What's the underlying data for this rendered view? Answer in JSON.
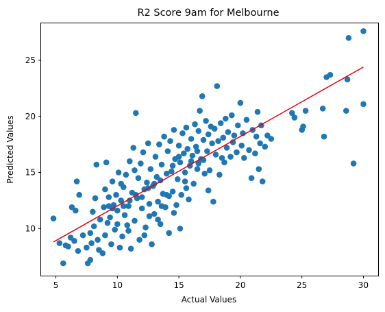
{
  "chart_data": {
    "type": "scatter",
    "title": "R2 Score 9am for Melbourne",
    "xlabel": "Actual Values",
    "ylabel": "Predicted Values",
    "xlim": [
      3.8,
      31.2
    ],
    "ylim": [
      5.8,
      28.3
    ],
    "xticks": [
      5,
      10,
      15,
      20,
      25,
      30
    ],
    "yticks": [
      10,
      15,
      20,
      25
    ],
    "grid": false,
    "marker_color": "#1f77b4",
    "fit_line_color": "#e8000b",
    "fit_line": {
      "x": [
        4.8,
        30.0
      ],
      "y": [
        8.8,
        24.4
      ]
    },
    "points": [
      [
        4.8,
        10.9
      ],
      [
        5.3,
        8.7
      ],
      [
        5.6,
        6.9
      ],
      [
        5.8,
        8.5
      ],
      [
        6.0,
        8.4
      ],
      [
        6.2,
        9.2
      ],
      [
        6.3,
        11.9
      ],
      [
        6.5,
        8.9
      ],
      [
        6.6,
        11.6
      ],
      [
        6.7,
        14.2
      ],
      [
        6.8,
        8.0
      ],
      [
        6.9,
        13.0
      ],
      [
        7.2,
        9.4
      ],
      [
        7.5,
        8.3
      ],
      [
        7.6,
        6.9
      ],
      [
        7.8,
        7.2
      ],
      [
        7.8,
        9.6
      ],
      [
        7.9,
        8.7
      ],
      [
        8.0,
        11.5
      ],
      [
        8.1,
        10.2
      ],
      [
        8.2,
        12.7
      ],
      [
        8.3,
        15.7
      ],
      [
        8.4,
        9.0
      ],
      [
        8.5,
        8.1
      ],
      [
        8.6,
        10.8
      ],
      [
        8.8,
        7.8
      ],
      [
        8.9,
        11.9
      ],
      [
        9.0,
        9.4
      ],
      [
        9.0,
        13.5
      ],
      [
        9.1,
        15.9
      ],
      [
        9.2,
        10.5
      ],
      [
        9.3,
        12.8
      ],
      [
        9.4,
        11.0
      ],
      [
        9.5,
        8.6
      ],
      [
        9.6,
        14.2
      ],
      [
        9.7,
        12.1
      ],
      [
        9.8,
        9.9
      ],
      [
        9.9,
        13.0
      ],
      [
        10.0,
        11.6
      ],
      [
        10.1,
        15.0
      ],
      [
        10.2,
        8.3
      ],
      [
        10.3,
        12.5
      ],
      [
        10.4,
        9.3
      ],
      [
        10.5,
        13.7
      ],
      [
        10.6,
        11.2
      ],
      [
        10.7,
        14.8
      ],
      [
        10.8,
        10.3
      ],
      [
        10.9,
        12.0
      ],
      [
        11.0,
        16.0
      ],
      [
        11.1,
        8.2
      ],
      [
        11.2,
        13.2
      ],
      [
        11.3,
        17.2
      ],
      [
        11.4,
        10.7
      ],
      [
        11.5,
        20.3
      ],
      [
        11.6,
        12.7
      ],
      [
        11.7,
        14.5
      ],
      [
        11.8,
        9.0
      ],
      [
        11.9,
        15.8
      ],
      [
        12.0,
        11.8
      ],
      [
        12.1,
        16.8
      ],
      [
        12.2,
        13.5
      ],
      [
        12.3,
        10.1
      ],
      [
        12.4,
        14.1
      ],
      [
        12.5,
        17.6
      ],
      [
        12.6,
        12.2
      ],
      [
        12.7,
        15.3
      ],
      [
        12.8,
        8.6
      ],
      [
        12.9,
        13.8
      ],
      [
        13.0,
        11.3
      ],
      [
        13.1,
        16.4
      ],
      [
        13.2,
        14.6
      ],
      [
        13.3,
        12.4
      ],
      [
        13.4,
        17.5
      ],
      [
        13.5,
        10.4
      ],
      [
        13.6,
        15.7
      ],
      [
        13.7,
        13.1
      ],
      [
        13.8,
        18.2
      ],
      [
        13.9,
        11.9
      ],
      [
        14.0,
        14.9
      ],
      [
        14.1,
        16.9
      ],
      [
        14.2,
        12.9
      ],
      [
        14.3,
        17.8
      ],
      [
        14.4,
        15.1
      ],
      [
        14.5,
        13.3
      ],
      [
        14.6,
        18.8
      ],
      [
        14.7,
        16.2
      ],
      [
        14.8,
        12.1
      ],
      [
        14.9,
        14.4
      ],
      [
        15.0,
        17.4
      ],
      [
        15.1,
        15.9
      ],
      [
        15.2,
        13.0
      ],
      [
        15.3,
        18.5
      ],
      [
        15.4,
        16.7
      ],
      [
        15.5,
        14.2
      ],
      [
        15.6,
        19.0
      ],
      [
        15.7,
        17.1
      ],
      [
        15.8,
        12.6
      ],
      [
        15.9,
        15.6
      ],
      [
        16.0,
        18.0
      ],
      [
        16.1,
        16.5
      ],
      [
        16.2,
        14.0
      ],
      [
        16.3,
        19.3
      ],
      [
        16.4,
        17.3
      ],
      [
        16.5,
        15.3
      ],
      [
        16.6,
        18.7
      ],
      [
        16.7,
        20.5
      ],
      [
        16.8,
        16.2
      ],
      [
        16.9,
        21.8
      ],
      [
        17.0,
        17.9
      ],
      [
        17.1,
        14.9
      ],
      [
        17.2,
        19.6
      ],
      [
        17.3,
        16.9
      ],
      [
        17.4,
        18.4
      ],
      [
        17.5,
        15.2
      ],
      [
        17.6,
        19.1
      ],
      [
        17.7,
        17.6
      ],
      [
        17.8,
        12.4
      ],
      [
        17.9,
        18.9
      ],
      [
        18.0,
        16.6
      ],
      [
        18.1,
        22.7
      ],
      [
        18.2,
        17.8
      ],
      [
        18.3,
        14.8
      ],
      [
        18.4,
        19.4
      ],
      [
        18.5,
        16.3
      ],
      [
        18.6,
        18.1
      ],
      [
        18.7,
        15.9
      ],
      [
        18.8,
        19.8
      ],
      [
        18.9,
        17.2
      ],
      [
        19.0,
        18.6
      ],
      [
        19.2,
        16.4
      ],
      [
        19.3,
        20.1
      ],
      [
        19.4,
        17.7
      ],
      [
        19.5,
        18.3
      ],
      [
        19.7,
        16.8
      ],
      [
        19.8,
        19.2
      ],
      [
        20.0,
        21.2
      ],
      [
        20.1,
        17.4
      ],
      [
        20.2,
        18.5
      ],
      [
        20.3,
        16.3
      ],
      [
        20.5,
        19.7
      ],
      [
        20.7,
        17.0
      ],
      [
        20.9,
        14.5
      ],
      [
        21.0,
        18.8
      ],
      [
        21.2,
        16.7
      ],
      [
        21.3,
        18.2
      ],
      [
        21.4,
        20.4
      ],
      [
        21.5,
        15.3
      ],
      [
        21.6,
        17.6
      ],
      [
        21.7,
        19.2
      ],
      [
        21.8,
        14.2
      ],
      [
        22.0,
        17.3
      ],
      [
        22.2,
        18.3
      ],
      [
        22.5,
        18.0
      ],
      [
        24.2,
        20.3
      ],
      [
        24.4,
        19.9
      ],
      [
        25.0,
        18.8
      ],
      [
        25.1,
        19.1
      ],
      [
        25.3,
        20.5
      ],
      [
        26.7,
        20.7
      ],
      [
        26.8,
        18.2
      ],
      [
        27.0,
        23.5
      ],
      [
        27.3,
        23.7
      ],
      [
        28.6,
        20.5
      ],
      [
        28.7,
        23.3
      ],
      [
        28.8,
        27.0
      ],
      [
        29.2,
        15.8
      ],
      [
        30.0,
        21.1
      ],
      [
        30.0,
        27.6
      ],
      [
        9.6,
        11.8
      ],
      [
        10.0,
        10.4
      ],
      [
        10.5,
        12.0
      ],
      [
        11.0,
        12.5
      ],
      [
        11.5,
        13.0
      ],
      [
        12.0,
        12.8
      ],
      [
        12.5,
        13.6
      ],
      [
        13.0,
        14.0
      ],
      [
        13.5,
        14.3
      ],
      [
        14.0,
        13.0
      ],
      [
        14.5,
        15.6
      ],
      [
        15.0,
        16.4
      ],
      [
        15.5,
        15.0
      ],
      [
        16.0,
        16.0
      ],
      [
        16.5,
        16.9
      ],
      [
        17.0,
        16.1
      ],
      [
        10.3,
        14.0
      ],
      [
        11.4,
        15.2
      ],
      [
        12.6,
        11.1
      ],
      [
        13.6,
        12.0
      ],
      [
        14.6,
        11.4
      ],
      [
        15.6,
        13.6
      ],
      [
        16.6,
        15.8
      ],
      [
        17.4,
        13.4
      ],
      [
        9.3,
        12.0
      ],
      [
        10.9,
        9.8
      ],
      [
        12.2,
        9.4
      ],
      [
        13.3,
        10.8
      ],
      [
        14.2,
        9.6
      ],
      [
        15.1,
        10.0
      ]
    ]
  }
}
